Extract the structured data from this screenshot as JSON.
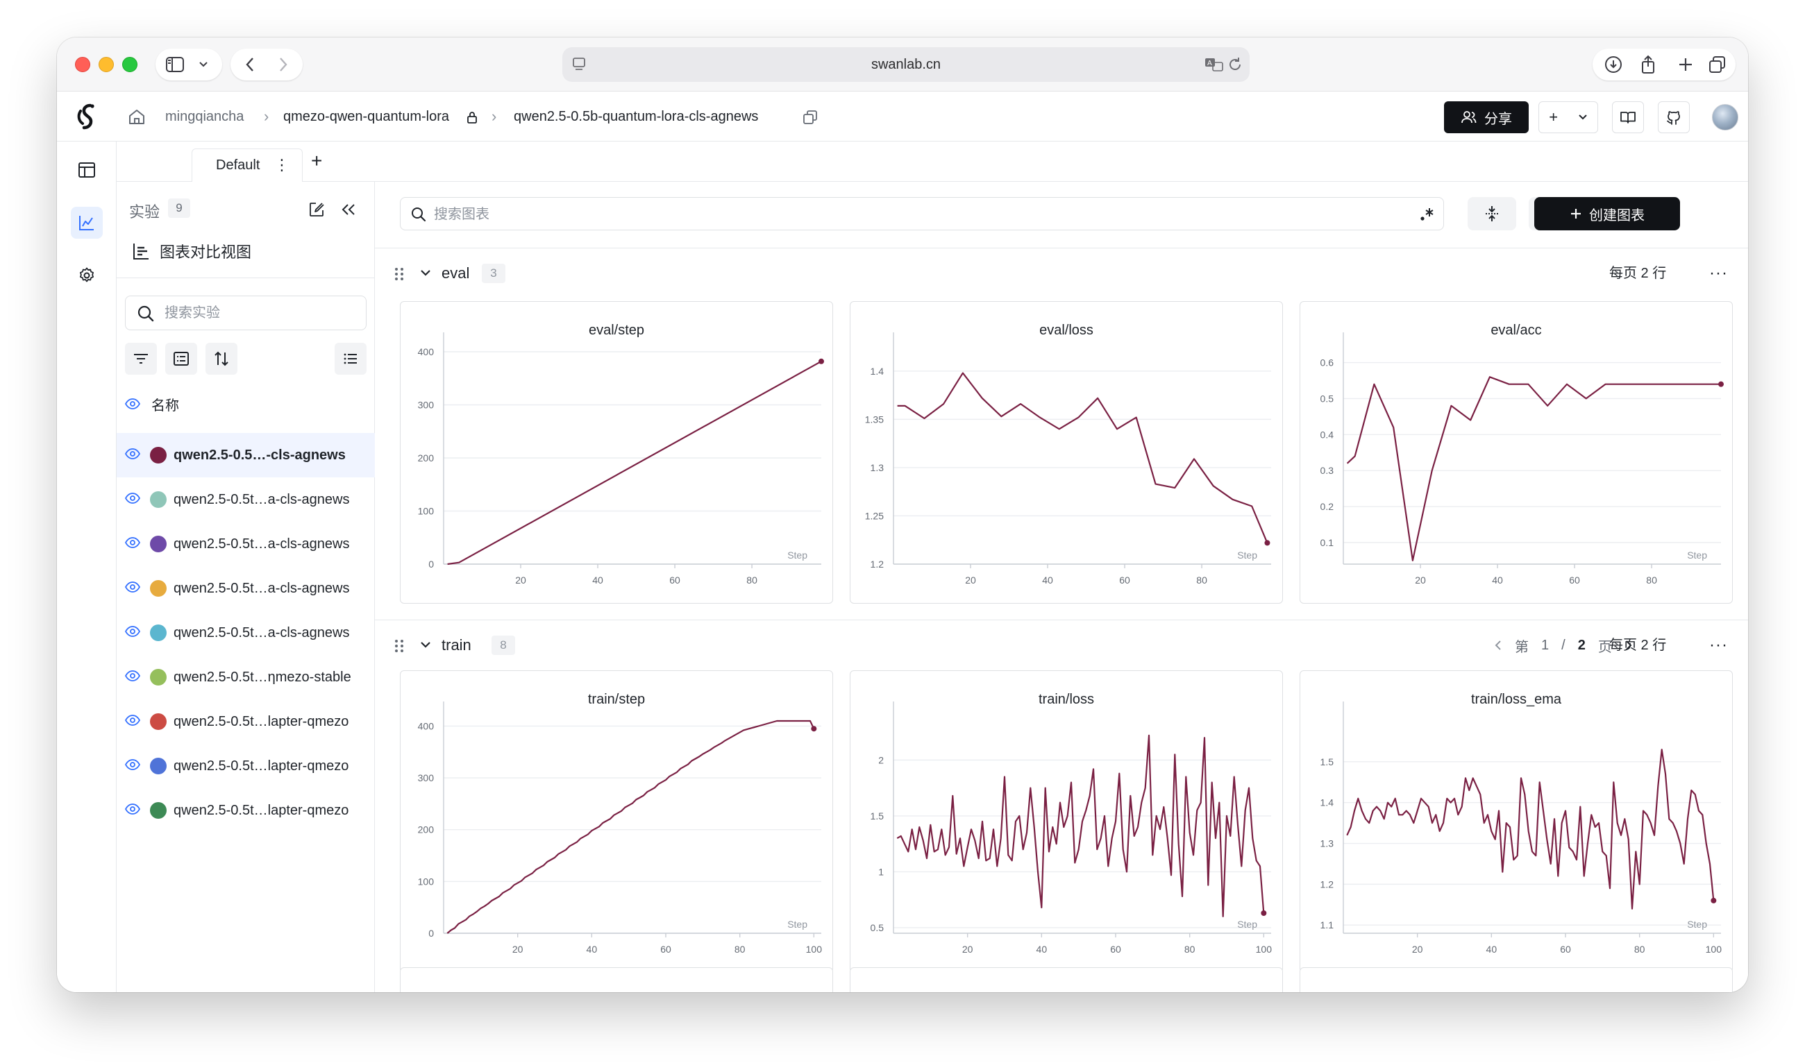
{
  "browser": {
    "url": "swanlab.cn"
  },
  "header": {
    "breadcrumb": {
      "user": "mingqiancha",
      "project": "qmezo-qwen-quantum-lora",
      "experiment": "qwen2.5-0.5b-quantum-lora-cls-agnews"
    },
    "share_label": "分享",
    "add_label": "+"
  },
  "tabs": {
    "items": [
      {
        "label": "Default"
      }
    ],
    "add_label": "+"
  },
  "sidebar": {
    "title": "实验",
    "count": "9",
    "compare_view_label": "图表对比视图",
    "search_placeholder": "搜索实验",
    "name_header": "名称",
    "runs": [
      {
        "name": "qwen2.5-0.5…-cls-agnews",
        "color": "#7a2043",
        "selected": true
      },
      {
        "name": "qwen2.5-0.5t…a-cls-agnews",
        "color": "#8fc6b8",
        "selected": false
      },
      {
        "name": "qwen2.5-0.5t…a-cls-agnews",
        "color": "#6e4aa8",
        "selected": false
      },
      {
        "name": "qwen2.5-0.5t…a-cls-agnews",
        "color": "#e7ab3e",
        "selected": false
      },
      {
        "name": "qwen2.5-0.5t…a-cls-agnews",
        "color": "#5bb6cf",
        "selected": false
      },
      {
        "name": "qwen2.5-0.5t…ηmezo-stable",
        "color": "#95bf5c",
        "selected": false
      },
      {
        "name": "qwen2.5-0.5t…lapter-qmezo",
        "color": "#cc4b43",
        "selected": false
      },
      {
        "name": "qwen2.5-0.5t…lapter-qmezo",
        "color": "#4f73d8",
        "selected": false
      },
      {
        "name": "qwen2.5-0.5t…lapter-qmezo",
        "color": "#3d8a55",
        "selected": false
      }
    ]
  },
  "toolbar": {
    "search_placeholder": "搜索图表",
    "settings_label": "设置",
    "create_chart_label": "创建图表"
  },
  "sections": [
    {
      "title": "eval",
      "count": "3",
      "per_page": "每页 2 行"
    },
    {
      "title": "train",
      "count": "8",
      "per_page": "每页 2 行",
      "pager": {
        "prefix": "第",
        "current": "1",
        "sep": "/",
        "total": "2",
        "suffix": "页"
      }
    }
  ],
  "colors": {
    "series": "#7a2043",
    "accent": "#3370ff"
  },
  "chart_data": [
    {
      "type": "line",
      "title": "eval/step",
      "xlabel": "Step",
      "ylabel": "",
      "xlim": [
        0,
        98
      ],
      "ylim": [
        0,
        400
      ],
      "x_ticks": [
        20,
        40,
        60,
        80
      ],
      "y_ticks": [
        0,
        100,
        200,
        300,
        400
      ],
      "grid": true,
      "series": [
        {
          "x": [
            1,
            4,
            98
          ],
          "y": [
            0,
            3,
            382
          ]
        }
      ]
    },
    {
      "type": "line",
      "title": "eval/loss",
      "xlabel": "Step",
      "ylabel": "",
      "xlim": [
        0,
        98
      ],
      "ylim": [
        1.2,
        1.42
      ],
      "x_ticks": [
        20,
        40,
        60,
        80
      ],
      "y_ticks": [
        1.2,
        1.25,
        1.3,
        1.35,
        1.4
      ],
      "y_tick_labels": [
        "1.2",
        "1.25",
        "1.3",
        "1.35",
        "1.4"
      ],
      "grid": true,
      "series": [
        {
          "x": [
            1,
            3,
            8,
            13,
            18,
            23,
            28,
            33,
            38,
            43,
            48,
            53,
            58,
            63,
            68,
            73,
            78,
            83,
            88,
            93,
            97
          ],
          "y": [
            1.364,
            1.364,
            1.351,
            1.366,
            1.398,
            1.372,
            1.353,
            1.366,
            1.352,
            1.34,
            1.352,
            1.372,
            1.34,
            1.352,
            1.283,
            1.279,
            1.309,
            1.281,
            1.267,
            1.26,
            1.222
          ]
        }
      ]
    },
    {
      "type": "line",
      "title": "eval/acc",
      "xlabel": "Step",
      "ylabel": "",
      "xlim": [
        0,
        98
      ],
      "ylim": [
        0.04,
        0.63
      ],
      "x_ticks": [
        20,
        40,
        60,
        80
      ],
      "y_ticks": [
        0.1,
        0.2,
        0.3,
        0.4,
        0.5,
        0.6
      ],
      "grid": true,
      "series": [
        {
          "x": [
            1,
            3,
            8,
            13,
            18,
            23,
            28,
            33,
            38,
            43,
            48,
            53,
            58,
            63,
            68,
            73,
            78,
            83,
            88,
            93,
            98
          ],
          "y": [
            0.32,
            0.34,
            0.54,
            0.42,
            0.05,
            0.3,
            0.48,
            0.44,
            0.56,
            0.54,
            0.54,
            0.48,
            0.54,
            0.5,
            0.54,
            0.54,
            0.54,
            0.54,
            0.54,
            0.54,
            0.54
          ]
        }
      ]
    },
    {
      "type": "line",
      "title": "train/step",
      "xlabel": "Step",
      "ylabel": "",
      "xlim": [
        0,
        102
      ],
      "ylim": [
        0,
        410
      ],
      "x_ticks": [
        20,
        40,
        60,
        80,
        100
      ],
      "y_ticks": [
        0,
        100,
        200,
        300,
        400
      ],
      "grid": true,
      "series": [
        {
          "x": [
            1,
            2,
            3,
            4,
            5,
            6,
            7,
            8,
            9,
            10,
            11,
            12,
            13,
            14,
            15,
            16,
            17,
            18,
            19,
            20,
            21,
            22,
            23,
            24,
            25,
            26,
            27,
            28,
            29,
            30,
            31,
            32,
            33,
            34,
            35,
            36,
            37,
            38,
            39,
            40,
            41,
            42,
            43,
            44,
            45,
            46,
            47,
            48,
            49,
            50,
            51,
            52,
            53,
            54,
            55,
            56,
            57,
            58,
            59,
            60,
            61,
            62,
            63,
            64,
            65,
            66,
            67,
            68,
            69,
            70,
            71,
            72,
            73,
            74,
            75,
            76,
            77,
            78,
            79,
            80,
            81,
            82,
            83,
            84,
            85,
            86,
            87,
            88,
            89,
            90,
            91,
            92,
            93,
            94,
            95,
            96,
            97,
            98,
            99,
            100
          ],
          "y": [
            0,
            6,
            10,
            18,
            22,
            26,
            33,
            37,
            42,
            48,
            52,
            57,
            63,
            67,
            71,
            78,
            82,
            86,
            93,
            97,
            101,
            108,
            112,
            116,
            123,
            127,
            131,
            138,
            142,
            146,
            153,
            157,
            161,
            168,
            172,
            176,
            183,
            187,
            191,
            198,
            202,
            206,
            213,
            217,
            221,
            228,
            232,
            236,
            243,
            247,
            251,
            258,
            262,
            266,
            273,
            277,
            281,
            288,
            292,
            296,
            303,
            307,
            311,
            318,
            322,
            326,
            333,
            337,
            341,
            346,
            350,
            354,
            359,
            363,
            367,
            372,
            376,
            380,
            384,
            388,
            392,
            394,
            396,
            398,
            400,
            402,
            404,
            406,
            408,
            410,
            412,
            414,
            416,
            418,
            420,
            422,
            424,
            426,
            428,
            395
          ]
        }
      ]
    },
    {
      "type": "line",
      "title": "train/loss",
      "xlabel": "Step",
      "ylabel": "",
      "xlim": [
        0,
        102
      ],
      "ylim": [
        0.45,
        2.35
      ],
      "x_ticks": [
        20,
        40,
        60,
        80,
        100
      ],
      "y_ticks": [
        0.5,
        1,
        1.5,
        2
      ],
      "y_tick_labels": [
        "0.5",
        "1",
        "1.5",
        "2"
      ],
      "grid": true,
      "series": [
        {
          "x": [
            1,
            2,
            3,
            4,
            5,
            6,
            7,
            8,
            9,
            10,
            11,
            12,
            13,
            14,
            15,
            16,
            17,
            18,
            19,
            20,
            21,
            22,
            23,
            24,
            25,
            26,
            27,
            28,
            29,
            30,
            31,
            32,
            33,
            34,
            35,
            36,
            37,
            38,
            39,
            40,
            41,
            42,
            43,
            44,
            45,
            46,
            47,
            48,
            49,
            50,
            51,
            52,
            53,
            54,
            55,
            56,
            57,
            58,
            59,
            60,
            61,
            62,
            63,
            64,
            65,
            66,
            67,
            68,
            69,
            70,
            71,
            72,
            73,
            74,
            75,
            76,
            77,
            78,
            79,
            80,
            81,
            82,
            83,
            84,
            85,
            86,
            87,
            88,
            89,
            90,
            91,
            92,
            93,
            94,
            95,
            96,
            97,
            98,
            99,
            100
          ],
          "y": [
            1.3,
            1.32,
            1.25,
            1.18,
            1.38,
            1.2,
            1.4,
            1.28,
            1.12,
            1.42,
            1.18,
            1.2,
            1.38,
            1.15,
            1.22,
            1.68,
            1.16,
            1.3,
            1.05,
            1.22,
            1.38,
            1.28,
            1.12,
            1.45,
            1.1,
            1.12,
            1.38,
            1.05,
            1.3,
            1.85,
            1.15,
            1.1,
            1.45,
            1.5,
            1.2,
            1.35,
            1.75,
            1.4,
            1.0,
            0.68,
            1.75,
            1.18,
            1.4,
            1.25,
            1.62,
            1.4,
            1.5,
            1.8,
            1.08,
            1.2,
            1.45,
            1.55,
            1.68,
            1.92,
            1.2,
            1.3,
            1.5,
            1.05,
            1.3,
            1.45,
            1.88,
            1.2,
            1.0,
            1.68,
            1.32,
            1.4,
            1.62,
            1.75,
            2.22,
            1.15,
            1.5,
            1.38,
            1.58,
            1.3,
            0.97,
            2.05,
            1.25,
            0.78,
            1.85,
            1.35,
            1.15,
            1.55,
            1.62,
            2.2,
            0.88,
            1.8,
            1.3,
            1.62,
            0.6,
            1.5,
            1.32,
            1.85,
            1.42,
            1.05,
            1.55,
            1.75,
            1.3,
            1.1,
            1.05,
            0.63
          ]
        }
      ]
    },
    {
      "type": "line",
      "title": "train/loss_ema",
      "xlabel": "Step",
      "ylabel": "",
      "xlim": [
        0,
        102
      ],
      "ylim": [
        1.08,
        1.6
      ],
      "x_ticks": [
        20,
        40,
        60,
        80,
        100
      ],
      "y_ticks": [
        1.1,
        1.2,
        1.3,
        1.4,
        1.5
      ],
      "grid": true,
      "series": [
        {
          "x": [
            1,
            2,
            3,
            4,
            5,
            6,
            7,
            8,
            9,
            10,
            11,
            12,
            13,
            14,
            15,
            16,
            17,
            18,
            19,
            20,
            21,
            22,
            23,
            24,
            25,
            26,
            27,
            28,
            29,
            30,
            31,
            32,
            33,
            34,
            35,
            36,
            37,
            38,
            39,
            40,
            41,
            42,
            43,
            44,
            45,
            46,
            47,
            48,
            49,
            50,
            51,
            52,
            53,
            54,
            55,
            56,
            57,
            58,
            59,
            60,
            61,
            62,
            63,
            64,
            65,
            66,
            67,
            68,
            69,
            70,
            71,
            72,
            73,
            74,
            75,
            76,
            77,
            78,
            79,
            80,
            81,
            82,
            83,
            84,
            85,
            86,
            87,
            88,
            89,
            90,
            91,
            92,
            93,
            94,
            95,
            96,
            97,
            98,
            99,
            100
          ],
          "y": [
            1.32,
            1.34,
            1.38,
            1.41,
            1.38,
            1.36,
            1.35,
            1.38,
            1.39,
            1.38,
            1.36,
            1.4,
            1.39,
            1.41,
            1.37,
            1.37,
            1.38,
            1.37,
            1.35,
            1.38,
            1.41,
            1.4,
            1.39,
            1.35,
            1.37,
            1.33,
            1.35,
            1.41,
            1.4,
            1.41,
            1.37,
            1.39,
            1.46,
            1.43,
            1.46,
            1.44,
            1.42,
            1.35,
            1.37,
            1.33,
            1.31,
            1.38,
            1.23,
            1.35,
            1.34,
            1.26,
            1.27,
            1.46,
            1.42,
            1.33,
            1.28,
            1.27,
            1.45,
            1.38,
            1.31,
            1.25,
            1.36,
            1.22,
            1.35,
            1.38,
            1.29,
            1.28,
            1.26,
            1.39,
            1.22,
            1.3,
            1.37,
            1.34,
            1.35,
            1.28,
            1.27,
            1.19,
            1.45,
            1.35,
            1.32,
            1.36,
            1.31,
            1.14,
            1.28,
            1.2,
            1.38,
            1.37,
            1.35,
            1.32,
            1.44,
            1.53,
            1.47,
            1.36,
            1.35,
            1.33,
            1.3,
            1.25,
            1.36,
            1.43,
            1.42,
            1.38,
            1.37,
            1.3,
            1.25,
            1.16
          ]
        }
      ]
    }
  ]
}
